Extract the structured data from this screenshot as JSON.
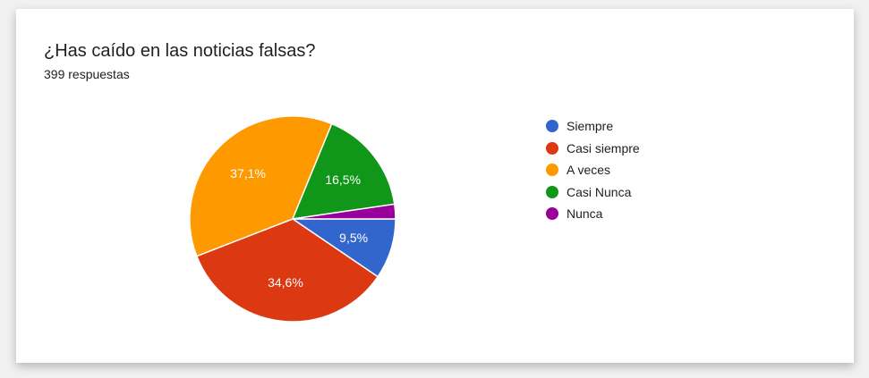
{
  "card": {
    "title": "¿Has caído en las noticias falsas?",
    "subtitle": "399 respuestas"
  },
  "chart_data": {
    "type": "pie",
    "title": "¿Has caído en las noticias falsas?",
    "legend_position": "right",
    "series": [
      {
        "name": "Siempre",
        "value": 9.5,
        "label": "9,5%",
        "color": "#3366cc"
      },
      {
        "name": "Casi siempre",
        "value": 34.6,
        "label": "34,6%",
        "color": "#dc3912"
      },
      {
        "name": "A veces",
        "value": 37.1,
        "label": "37,1%",
        "color": "#ff9900"
      },
      {
        "name": "Casi Nunca",
        "value": 16.5,
        "label": "16,5%",
        "color": "#109618"
      },
      {
        "name": "Nunca",
        "value": 2.3,
        "label": "",
        "color": "#990099"
      }
    ]
  }
}
